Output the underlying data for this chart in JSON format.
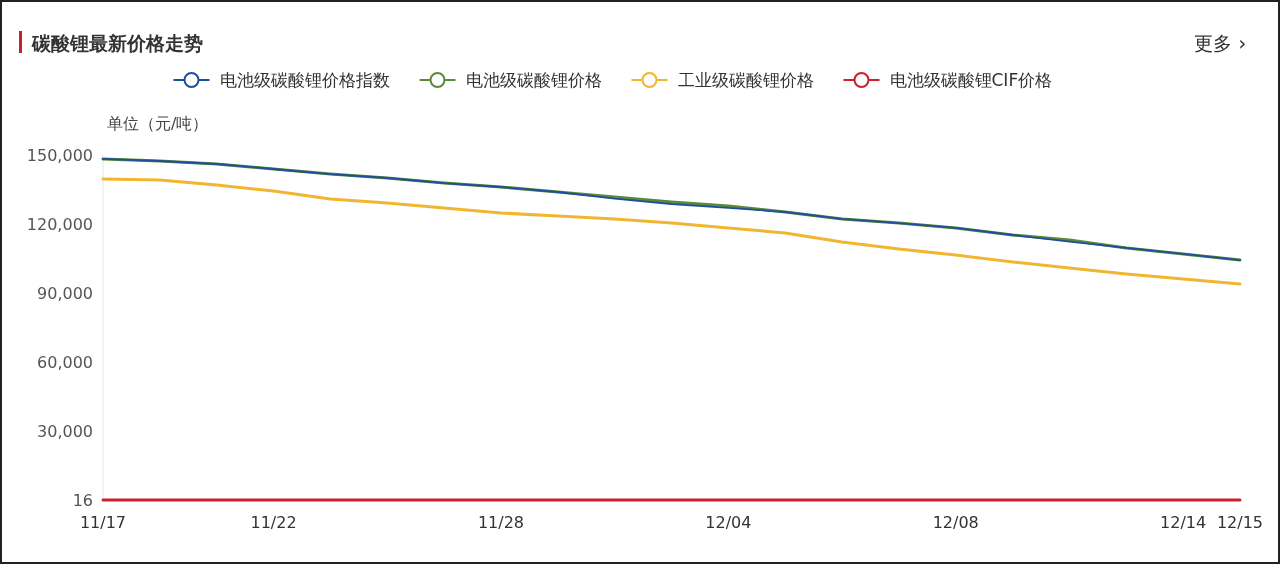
{
  "chart_data": {
    "type": "line",
    "title": "碳酸锂最新价格走势",
    "ylabel": "单位（元/吨）",
    "annotations": [
      "更多 ›"
    ],
    "categories": [
      "11/17",
      null,
      null,
      "11/22",
      null,
      null,
      null,
      "11/28",
      null,
      null,
      null,
      "12/04",
      null,
      null,
      null,
      "12/08",
      null,
      null,
      null,
      "12/14",
      "12/15"
    ],
    "ylim": [
      16,
      150000
    ],
    "yticks": [
      16,
      {
        "value": 30000,
        "label": "30,000"
      },
      {
        "value": 60000,
        "label": "60,000"
      },
      {
        "value": 90000,
        "label": "90,000"
      },
      {
        "value": 120000,
        "label": "120,000"
      },
      {
        "value": 150000,
        "label": "150,000"
      }
    ],
    "legend": "top",
    "marker": "none",
    "series": [
      {
        "name": "电池级碳酸锂价格指数",
        "color": "#1f4e9c",
        "values": [
          148300,
          147400,
          146100,
          143900,
          141700,
          140000,
          137800,
          136100,
          133900,
          131000,
          128700,
          127000,
          125200,
          122200,
          120400,
          118300,
          115200,
          112300,
          109600,
          107000,
          104300
        ]
      },
      {
        "name": "电池级碳酸锂价格",
        "color": "#5a8a3a",
        "values": [
          148300,
          147400,
          146100,
          143900,
          141700,
          140000,
          137800,
          136100,
          133900,
          131700,
          129600,
          127800,
          125200,
          122200,
          120400,
          118300,
          115200,
          113000,
          109600,
          107000,
          104300
        ]
      },
      {
        "name": "工业级碳酸锂价格",
        "color": "#f0b630",
        "values": [
          139600,
          139100,
          137000,
          134300,
          130900,
          129100,
          127000,
          124800,
          123500,
          122200,
          120400,
          118300,
          116100,
          112200,
          109100,
          106500,
          103500,
          100900,
          98300,
          96100,
          93900
        ]
      },
      {
        "name": "电池级碳酸锂CIF价格",
        "color": "#c8202c",
        "values": [
          16,
          16,
          16,
          16,
          16,
          16,
          16,
          16,
          16,
          16,
          16,
          16,
          16,
          16,
          16,
          16,
          16,
          16,
          16,
          16,
          16
        ]
      }
    ]
  }
}
